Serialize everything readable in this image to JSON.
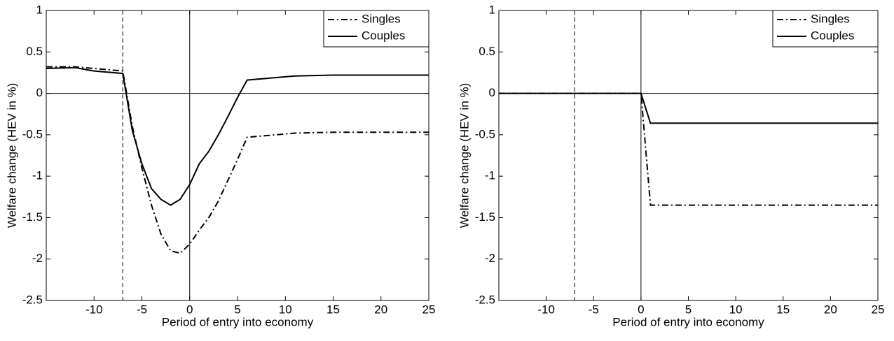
{
  "chart_data": [
    {
      "type": "line",
      "xlabel": "Period of entry into economy",
      "ylabel": "Welfare change (HEV in %)",
      "xlim": [
        -15,
        25
      ],
      "xticks": [
        -10,
        -5,
        0,
        5,
        10,
        15,
        20,
        25
      ],
      "ylim": [
        -2.5,
        1
      ],
      "yticks": [
        -2.5,
        -2,
        -1.5,
        -1,
        -0.5,
        0,
        0.5,
        1
      ],
      "vline_dashed": -7,
      "vline_solid": 0,
      "hline": 0,
      "legend": "upper right",
      "series": [
        {
          "name": "Singles",
          "color": "#000000",
          "style": "dashdot",
          "x": [
            -15,
            -12,
            -7,
            -6,
            -5,
            -4,
            -3,
            -2,
            -1,
            0,
            1,
            2,
            3,
            4,
            5,
            6,
            7,
            10,
            11,
            15,
            25
          ],
          "values": [
            0.32,
            0.32,
            0.27,
            -0.4,
            -0.9,
            -1.35,
            -1.7,
            -1.9,
            -1.93,
            -1.82,
            -1.65,
            -1.5,
            -1.3,
            -1.05,
            -0.8,
            -0.53,
            -0.52,
            -0.49,
            -0.48,
            -0.47,
            -0.47
          ]
        },
        {
          "name": "Couples",
          "color": "#000000",
          "style": "solid",
          "x": [
            -15,
            -12,
            -10,
            -7,
            -6,
            -5,
            -4,
            -3,
            -2,
            -1,
            0,
            1,
            2,
            3,
            4,
            5,
            6,
            7,
            10,
            11,
            15,
            25
          ],
          "values": [
            0.3,
            0.31,
            0.27,
            0.24,
            -0.45,
            -0.85,
            -1.15,
            -1.28,
            -1.35,
            -1.28,
            -1.1,
            -0.85,
            -0.7,
            -0.5,
            -0.28,
            -0.05,
            0.16,
            0.17,
            0.2,
            0.21,
            0.22,
            0.22
          ]
        }
      ]
    },
    {
      "type": "line",
      "xlabel": "Period of entry into economy",
      "ylabel": "Welfare change (HEV in %)",
      "xlim": [
        -15,
        25
      ],
      "xticks": [
        -10,
        -5,
        0,
        5,
        10,
        15,
        20,
        25
      ],
      "ylim": [
        -2.5,
        1
      ],
      "yticks": [
        -2.5,
        -2,
        -1.5,
        -1,
        -0.5,
        0,
        0.5,
        1
      ],
      "vline_dashed": -7,
      "vline_solid": 0,
      "hline": 0,
      "legend": "upper right",
      "series": [
        {
          "name": "Singles",
          "color": "#000000",
          "style": "dashdot",
          "x": [
            -15,
            0,
            1,
            25
          ],
          "values": [
            0,
            0,
            -1.35,
            -1.35
          ]
        },
        {
          "name": "Couples",
          "color": "#000000",
          "style": "solid",
          "x": [
            -15,
            0,
            1,
            25
          ],
          "values": [
            0,
            0,
            -0.36,
            -0.36
          ]
        }
      ]
    }
  ]
}
